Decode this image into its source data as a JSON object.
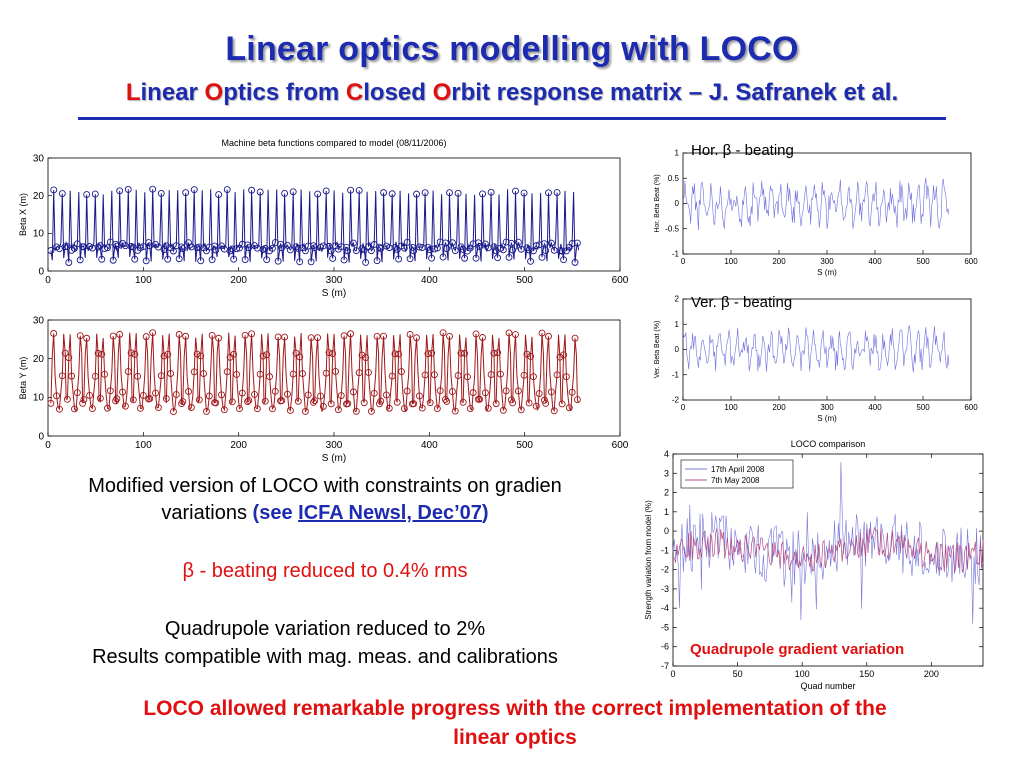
{
  "title": {
    "main": "Linear optics modelling with LOCO",
    "sub_parts": [
      {
        "text": "L",
        "red": true
      },
      {
        "text": "inear ",
        "red": false
      },
      {
        "text": "O",
        "red": true
      },
      {
        "text": "ptics from ",
        "red": false
      },
      {
        "text": "C",
        "red": true
      },
      {
        "text": "losed ",
        "red": false
      },
      {
        "text": "O",
        "red": true
      },
      {
        "text": "rbit response matrix – J. Safranek et al.",
        "red": false
      }
    ]
  },
  "text": {
    "modified_line1": "Modified version of LOCO with constraints on gradien",
    "modified_line2_pre": "variations ",
    "see_open": "(see ",
    "link": "ICFA Newsl, Dec’07",
    "see_close": ")",
    "beta_symbol": "β",
    "beating_result": " - beating reduced to 0.4%  rms",
    "quad_line1": "Quadrupole variation reduced to 2%",
    "quad_line2": "Results compatible with mag. meas. and calibrations",
    "conclusion_line1": "LOCO allowed remarkable progress with the correct implementation of the",
    "conclusion_line2": "linear optics",
    "quad_gradient_label": "Quadrupole gradient variation",
    "hor_beating_label": "Hor. β - beating",
    "ver_beating_label": "Ver. β - beating"
  },
  "colors": {
    "title_blue": "#1c2bb0",
    "accent_red": "#e01010",
    "beta_x": "#1a1a8c",
    "beta_y": "#a0181a",
    "beating": "#6f6fe0",
    "loco_a": "#7777dd",
    "loco_b": "#b04c86"
  },
  "chart_data": [
    {
      "id": "beta_x",
      "type": "line",
      "title": "Machine beta functions compared to model (08/11/2006)",
      "xlabel": "S (m)",
      "ylabel": "Beta X (m)",
      "xlim": [
        0,
        600
      ],
      "ylim": [
        0,
        30
      ],
      "xticks": [
        0,
        100,
        200,
        300,
        400,
        500,
        600
      ],
      "yticks": [
        0,
        10,
        20,
        30
      ],
      "cells": 32,
      "cell_length": 17.3,
      "cell_pattern": {
        "s": [
          0,
          1.5,
          3,
          4.5,
          6,
          7.5,
          9,
          10.5,
          12,
          13.5,
          15,
          16,
          17.3
        ],
        "v": [
          6,
          3,
          21,
          6,
          7,
          6,
          6,
          7,
          21,
          3,
          6,
          7,
          6
        ]
      },
      "series": [
        {
          "name": "",
          "s": [
            0,
            17.3
          ],
          "values": [
            6,
            6
          ]
        }
      ]
    },
    {
      "id": "beta_y",
      "type": "line",
      "xlabel": "S (m)",
      "ylabel": "Beta Y (m)",
      "xlim": [
        0,
        600
      ],
      "ylim": [
        0,
        30
      ],
      "xticks": [
        0,
        100,
        200,
        300,
        400,
        500,
        600
      ],
      "yticks": [
        0,
        10,
        20,
        30
      ],
      "cells": 32,
      "cell_length": 17.3,
      "cell_pattern": {
        "s": [
          0,
          1.5,
          3,
          4.5,
          6,
          7.5,
          9,
          10.5,
          12,
          13.5,
          15,
          16,
          17.3
        ],
        "v": [
          9,
          21,
          26,
          16,
          11,
          7,
          7,
          11,
          16,
          26,
          21,
          9,
          9
        ]
      }
    },
    {
      "id": "hor_beating",
      "type": "line",
      "xlabel": "S (m)",
      "ylabel": "Hor. Beta Beat (%)",
      "xlim": [
        0,
        600
      ],
      "ylim": [
        -1,
        1
      ],
      "xticks": [
        0,
        100,
        200,
        300,
        400,
        500,
        600
      ],
      "yticks": [
        -1,
        -0.5,
        0,
        0.5,
        1
      ],
      "ytick_labels": [
        "-1",
        "-0.5",
        "0",
        "0.5",
        "1"
      ],
      "amplitude": 0.45,
      "range": [
        0,
        555
      ]
    },
    {
      "id": "ver_beating",
      "type": "line",
      "xlabel": "S (m)",
      "ylabel": "Ver. Beta Beat (%)",
      "xlim": [
        0,
        600
      ],
      "ylim": [
        -2,
        2
      ],
      "xticks": [
        0,
        100,
        200,
        300,
        400,
        500,
        600
      ],
      "yticks": [
        -2,
        -1,
        0,
        1,
        2
      ],
      "ytick_labels": [
        "-2",
        "-1",
        "0",
        "1",
        "2"
      ],
      "amplitude": 0.8,
      "range": [
        0,
        555
      ]
    },
    {
      "id": "loco_comparison",
      "type": "line",
      "title": "LOCO comparison",
      "xlabel": "Quad number",
      "ylabel": "Strength variation from model (%)",
      "xlim": [
        0,
        240
      ],
      "ylim": [
        -7,
        4
      ],
      "xticks": [
        0,
        50,
        100,
        150,
        200
      ],
      "yticks": [
        -7,
        -6,
        -5,
        -4,
        -3,
        -2,
        -1,
        0,
        1,
        2,
        3,
        4
      ],
      "legend": [
        "17th April 2008",
        "7th May 2008"
      ],
      "legend_position": "top-left",
      "points": 240
    }
  ]
}
